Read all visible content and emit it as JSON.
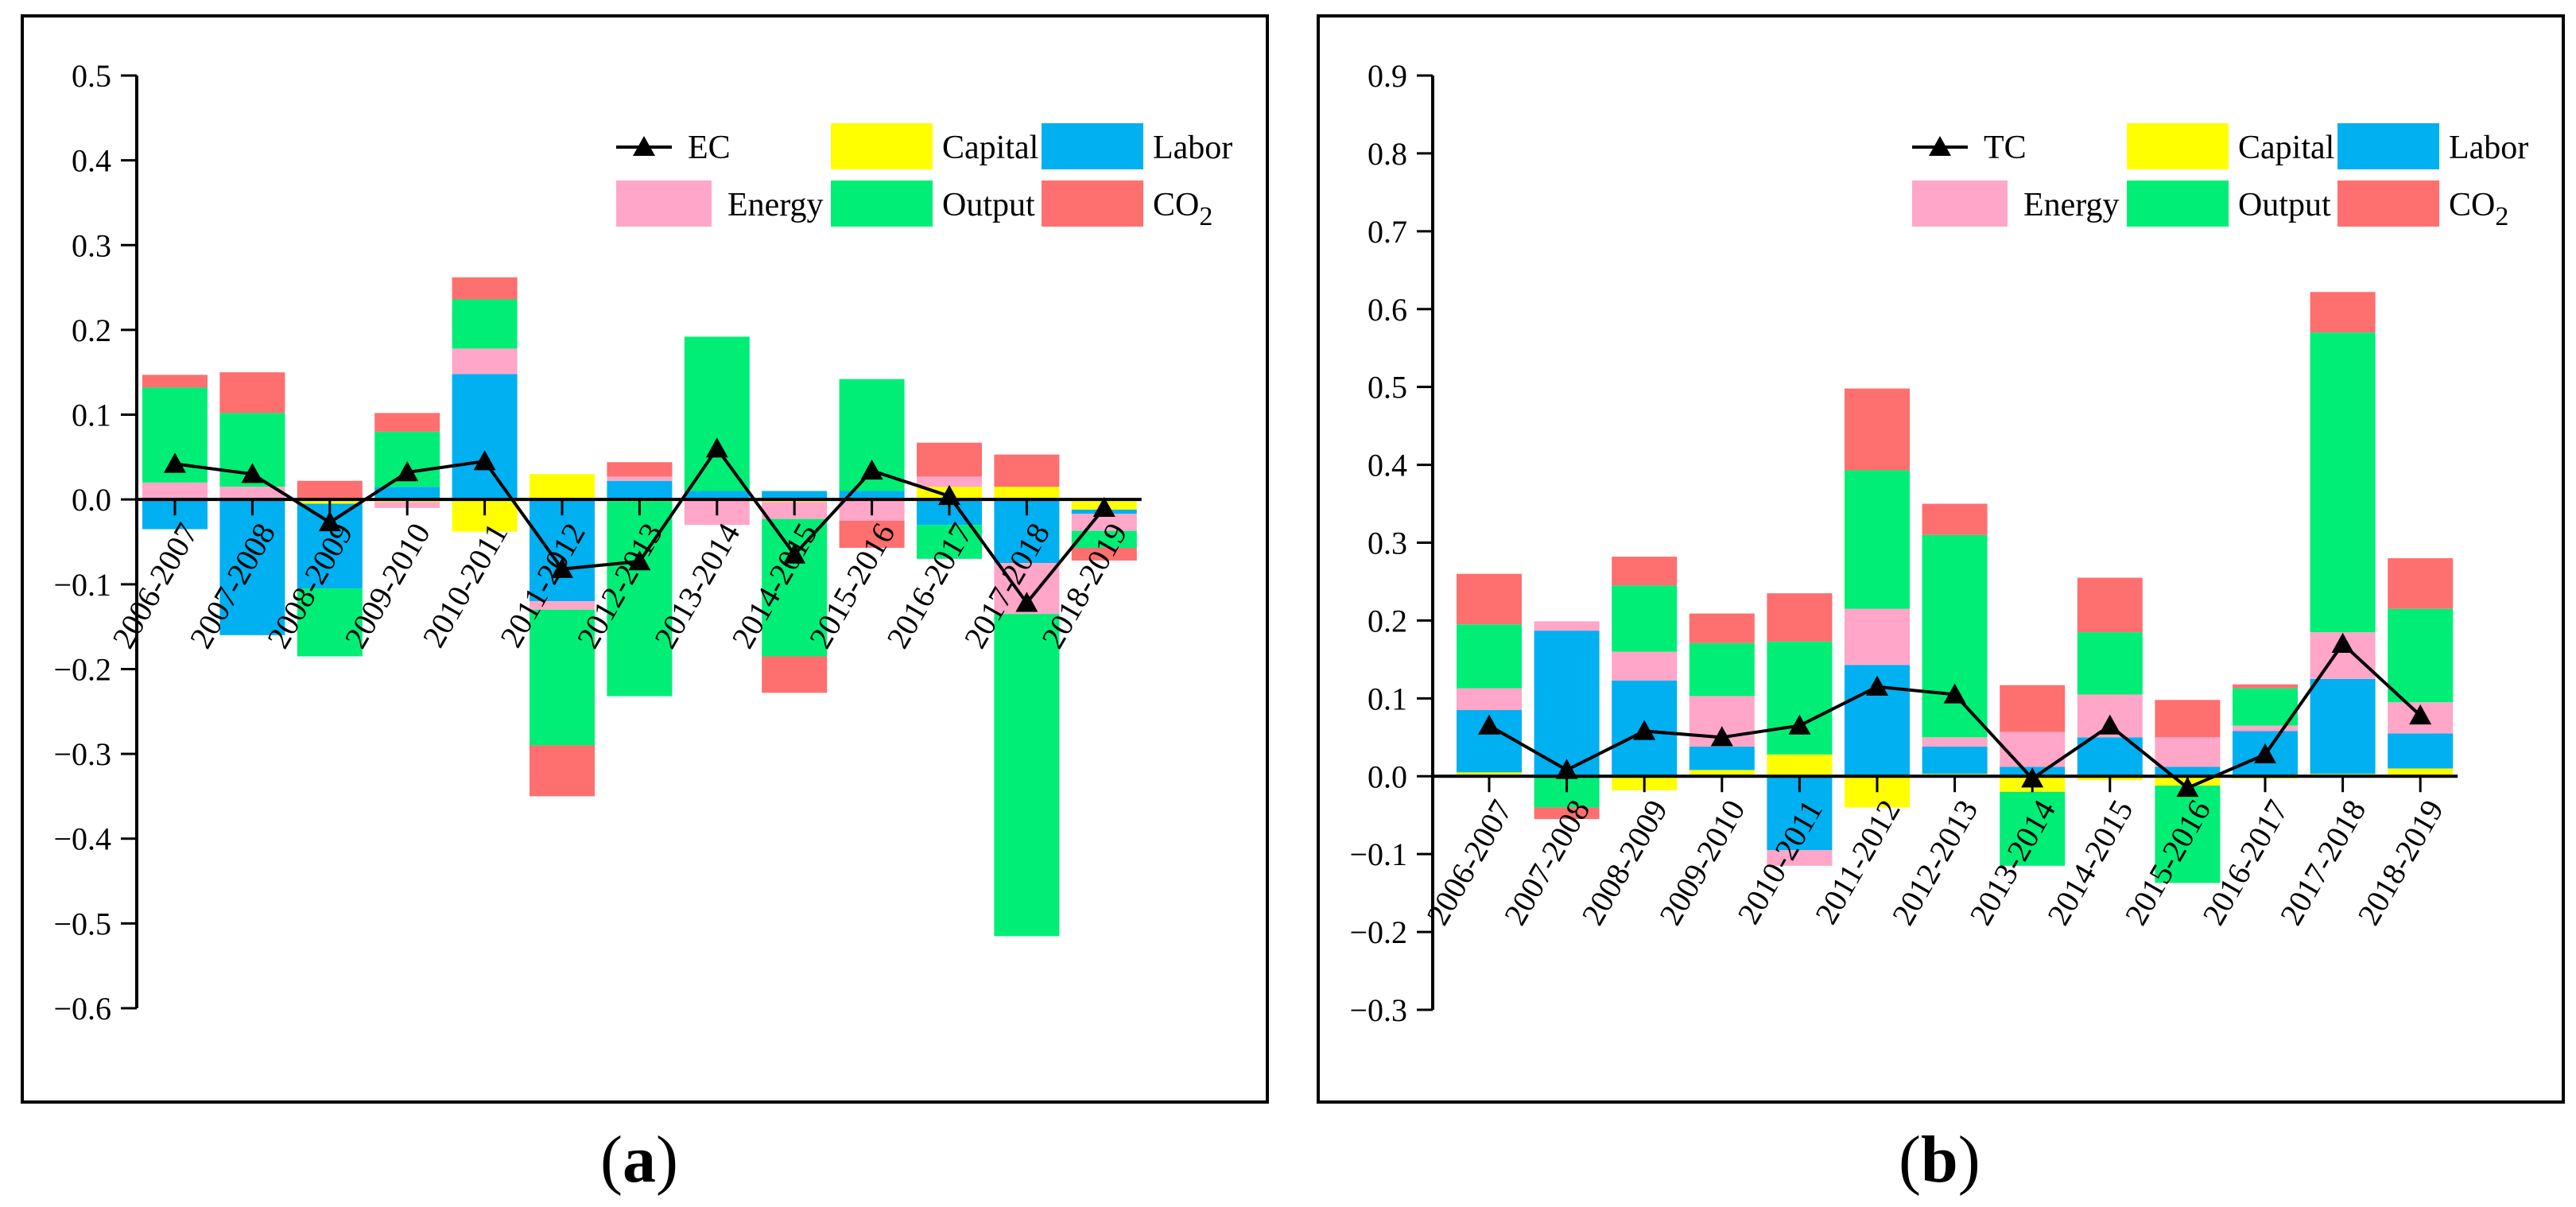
{
  "panel_labels": {
    "a": "a",
    "b": "b"
  },
  "chart_data": [
    {
      "type": "bar",
      "stacked": true,
      "panel": "a",
      "ylim": [
        -0.6,
        0.5
      ],
      "yticks": [
        "-0.6",
        "-0.5",
        "-0.4",
        "-0.3",
        "-0.2",
        "-0.1",
        "0.0",
        "0.1",
        "0.2",
        "0.3",
        "0.4",
        "0.5"
      ],
      "categories": [
        "2006-2007",
        "2007-2008",
        "2008-2009",
        "2009-2010",
        "2010-2011",
        "2011-2012",
        "2012-2013",
        "2013-2014",
        "2014-2015",
        "2015-2016",
        "2016-2017",
        "2017-2018",
        "2018-2019"
      ],
      "legend": {
        "position": "top-right",
        "line": "EC",
        "co2_main": "CO",
        "co2_sub": "2"
      },
      "series": [
        {
          "name": "Capital",
          "color": "#ffff00",
          "values": [
            0.0,
            0.0,
            -0.005,
            -0.003,
            -0.038,
            0.03,
            -0.002,
            0.0,
            -0.003,
            0.0,
            0.015,
            0.015,
            -0.012
          ]
        },
        {
          "name": "Labor",
          "color": "#00b0f0",
          "values": [
            -0.035,
            -0.16,
            -0.1,
            0.015,
            0.148,
            -0.12,
            0.022,
            0.01,
            0.01,
            0.01,
            -0.03,
            -0.075,
            -0.005
          ]
        },
        {
          "name": "Energy",
          "color": "#ffa6c9",
          "values": [
            0.02,
            0.015,
            0.0,
            -0.007,
            0.03,
            -0.01,
            0.005,
            -0.03,
            -0.02,
            -0.025,
            0.012,
            -0.06,
            -0.02
          ]
        },
        {
          "name": "Output",
          "color": "#00ee76",
          "values": [
            0.112,
            0.087,
            -0.08,
            0.065,
            0.058,
            -0.16,
            -0.23,
            0.182,
            -0.162,
            0.132,
            -0.04,
            -0.38,
            -0.02
          ]
        },
        {
          "name": "CO2",
          "color": "#fe6f6f",
          "values": [
            0.015,
            0.048,
            0.022,
            0.022,
            0.026,
            -0.06,
            0.017,
            0.0,
            -0.043,
            -0.032,
            0.04,
            0.038,
            -0.015
          ]
        }
      ],
      "line_series": {
        "name": "EC",
        "values": [
          0.042,
          0.03,
          -0.027,
          0.032,
          0.045,
          -0.082,
          -0.073,
          0.06,
          -0.065,
          0.034,
          0.004,
          -0.122,
          -0.01
        ]
      }
    },
    {
      "type": "bar",
      "stacked": true,
      "panel": "b",
      "ylim": [
        -0.3,
        0.9
      ],
      "yticks": [
        "-0.3",
        "-0.2",
        "-0.1",
        "0.0",
        "0.1",
        "0.2",
        "0.3",
        "0.4",
        "0.5",
        "0.6",
        "0.7",
        "0.8",
        "0.9"
      ],
      "categories": [
        "2006-2007",
        "2007-2008",
        "2008-2009",
        "2009-2010",
        "2010-2011",
        "2011-2012",
        "2012-2013",
        "2013-2014",
        "2014-2015",
        "2015-2016",
        "2016-2017",
        "2017-2018",
        "2018-2019"
      ],
      "legend": {
        "position": "top-right",
        "line": "TC",
        "co2_main": "CO",
        "co2_sub": "2"
      },
      "series": [
        {
          "name": "Capital",
          "color": "#ffff00",
          "values": [
            0.005,
            0.0,
            -0.018,
            0.008,
            0.028,
            -0.04,
            0.003,
            -0.02,
            -0.005,
            -0.012,
            -0.003,
            0.003,
            0.01
          ]
        },
        {
          "name": "Labor",
          "color": "#00b0f0",
          "values": [
            0.08,
            0.187,
            0.123,
            0.03,
            -0.095,
            0.143,
            0.035,
            0.012,
            0.05,
            0.012,
            0.058,
            0.122,
            0.045
          ]
        },
        {
          "name": "Energy",
          "color": "#ffa6c9",
          "values": [
            0.028,
            0.012,
            0.037,
            0.065,
            -0.02,
            0.072,
            0.012,
            0.045,
            0.055,
            0.038,
            0.007,
            0.06,
            0.04
          ]
        },
        {
          "name": "Output",
          "color": "#00ee76",
          "values": [
            0.082,
            -0.04,
            0.085,
            0.068,
            0.145,
            0.178,
            0.26,
            -0.095,
            0.08,
            -0.125,
            0.048,
            0.385,
            0.12
          ]
        },
        {
          "name": "CO2",
          "color": "#fe6f6f",
          "values": [
            0.065,
            -0.015,
            0.037,
            0.038,
            0.062,
            0.105,
            0.04,
            0.06,
            0.07,
            0.048,
            0.005,
            0.052,
            0.065
          ]
        }
      ],
      "line_series": {
        "name": "TC",
        "values": [
          0.065,
          0.008,
          0.058,
          0.05,
          0.065,
          0.115,
          0.105,
          -0.003,
          0.065,
          -0.015,
          0.028,
          0.17,
          0.078
        ]
      }
    }
  ]
}
